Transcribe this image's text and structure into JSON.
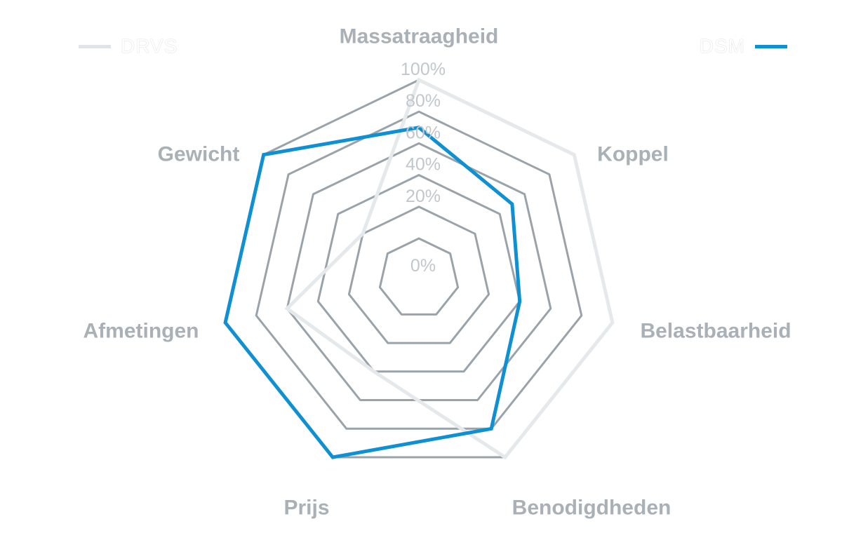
{
  "chart_data": {
    "type": "radar",
    "axes": [
      "Massatraagheid",
      "Koppel",
      "Belastbaarheid",
      "Benodigdheden",
      "Prijs",
      "Afmetingen",
      "Gewicht"
    ],
    "tick_labels": [
      "100%",
      "80%",
      "60%",
      "40%",
      "20%",
      "0%"
    ],
    "rlim": [
      0,
      100
    ],
    "series": [
      {
        "name": "DRVS",
        "color": "#e6e9ec",
        "values": [
          100,
          100,
          100,
          100,
          40,
          60,
          20
        ]
      },
      {
        "name": "DSM",
        "color": "#0f90d2",
        "values": [
          70,
          50,
          40,
          80,
          100,
          100,
          100
        ]
      }
    ],
    "grid_color": "#9aa3aa",
    "legend": {
      "left": "DRVS",
      "right": "DSM"
    }
  }
}
